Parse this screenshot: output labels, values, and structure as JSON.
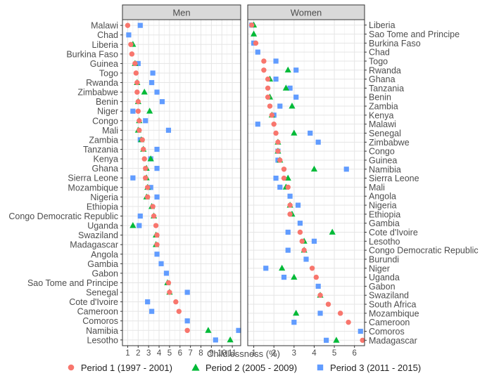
{
  "chart_data": {
    "type": "scatter",
    "xlabel": "Childlessness (%)",
    "colors": {
      "p1": "#F8766D",
      "p2": "#00BA38",
      "p3": "#619CFF"
    },
    "series": [
      {
        "key": "p1",
        "name": "Period 1 (1997 - 2001)",
        "marker": "circle"
      },
      {
        "key": "p2",
        "name": "Period 2 (2005 - 2009)",
        "marker": "triangle"
      },
      {
        "key": "p3",
        "name": "Period 3 (2011 - 2015)",
        "marker": "square"
      }
    ],
    "panels": [
      {
        "title": "Men",
        "axis_side": "left",
        "xlim": [
          0.5,
          11.8
        ],
        "ticks": [
          1,
          2,
          3,
          4,
          5,
          6,
          7,
          8,
          9,
          10,
          11
        ],
        "countries": [
          {
            "name": "Malawi",
            "p1": 1.0,
            "p2": null,
            "p3": 2.2
          },
          {
            "name": "Chad",
            "p1": null,
            "p2": null,
            "p3": 1.1
          },
          {
            "name": "Liberia",
            "p1": 1.3,
            "p2": 1.5,
            "p3": null
          },
          {
            "name": "Burkina Faso",
            "p1": 1.4,
            "p2": null,
            "p3": null
          },
          {
            "name": "Guinea",
            "p1": 1.7,
            "p2": 1.7,
            "p3": 2.0
          },
          {
            "name": "Togo",
            "p1": 1.8,
            "p2": null,
            "p3": 3.4
          },
          {
            "name": "Rwanda",
            "p1": 1.9,
            "p2": 1.9,
            "p3": 3.3
          },
          {
            "name": "Zimbabwe",
            "p1": 1.9,
            "p2": 2.6,
            "p3": 3.8
          },
          {
            "name": "Benin",
            "p1": 2.0,
            "p2": 2.0,
            "p3": 4.3
          },
          {
            "name": "Niger",
            "p1": 2.0,
            "p2": 3.1,
            "p3": 1.5
          },
          {
            "name": "Congo",
            "p1": 2.1,
            "p2": 2.1,
            "p3": 2.7
          },
          {
            "name": "Mali",
            "p1": 2.1,
            "p2": 2.0,
            "p3": 4.9
          },
          {
            "name": "Zambia",
            "p1": 2.4,
            "p2": 2.3,
            "p3": 2.2
          },
          {
            "name": "Tanzania",
            "p1": 2.5,
            "p2": 2.5,
            "p3": 3.8
          },
          {
            "name": "Kenya",
            "p1": 2.6,
            "p2": 3.2,
            "p3": 3.2
          },
          {
            "name": "Ghana",
            "p1": 2.7,
            "p2": 2.8,
            "p3": 3.8
          },
          {
            "name": "Sierra Leone",
            "p1": 2.7,
            "p2": 2.8,
            "p3": 1.5
          },
          {
            "name": "Mozambique",
            "p1": 2.9,
            "p2": 2.9,
            "p3": 3.2
          },
          {
            "name": "Nigeria",
            "p1": 2.9,
            "p2": 2.8,
            "p3": 3.8
          },
          {
            "name": "Ethiopia",
            "p1": 3.4,
            "p2": 3.3,
            "p3": null
          },
          {
            "name": "Congo Democratic Republic",
            "p1": 3.5,
            "p2": 3.5,
            "p3": 2.2
          },
          {
            "name": "Uganda",
            "p1": 3.7,
            "p2": 1.5,
            "p3": 2.1
          },
          {
            "name": "Swaziland",
            "p1": 3.8,
            "p2": 3.7,
            "p3": null
          },
          {
            "name": "Madagascar",
            "p1": 3.8,
            "p2": 3.7,
            "p3": null
          },
          {
            "name": "Angola",
            "p1": null,
            "p2": null,
            "p3": 3.8
          },
          {
            "name": "Gambia",
            "p1": null,
            "p2": null,
            "p3": 4.2
          },
          {
            "name": "Gabon",
            "p1": null,
            "p2": null,
            "p3": 4.7
          },
          {
            "name": "Sao Tome and Principe",
            "p1": 4.9,
            "p2": 4.8,
            "p3": null
          },
          {
            "name": "Senegal",
            "p1": 5.0,
            "p2": 5.0,
            "p3": 6.7
          },
          {
            "name": "Cote d'Ivoire",
            "p1": 5.6,
            "p2": null,
            "p3": 2.9
          },
          {
            "name": "Cameroon",
            "p1": 5.9,
            "p2": null,
            "p3": 3.3
          },
          {
            "name": "Comoros",
            "p1": null,
            "p2": null,
            "p3": 6.7
          },
          {
            "name": "Namibia",
            "p1": 6.7,
            "p2": 8.7,
            "p3": 11.6
          },
          {
            "name": "Lesotho",
            "p1": null,
            "p2": 10.8,
            "p3": 9.4
          }
        ]
      },
      {
        "title": "Women",
        "axis_side": "right",
        "xlim": [
          0.7,
          6.5
        ],
        "ticks": [
          1,
          2,
          3,
          4,
          5,
          6
        ],
        "countries": [
          {
            "name": "Liberia",
            "p1": 0.9,
            "p2": 1.0,
            "p3": 0.9
          },
          {
            "name": "Sao Tome and Principe",
            "p1": null,
            "p2": 1.0,
            "p3": null
          },
          {
            "name": "Burkina Faso",
            "p1": 1.1,
            "p2": null,
            "p3": 1.0
          },
          {
            "name": "Chad",
            "p1": null,
            "p2": null,
            "p3": 1.2
          },
          {
            "name": "Togo",
            "p1": 1.5,
            "p2": null,
            "p3": 2.1
          },
          {
            "name": "Rwanda",
            "p1": 1.5,
            "p2": 2.7,
            "p3": 3.1
          },
          {
            "name": "Ghana",
            "p1": 1.7,
            "p2": 1.8,
            "p3": 2.1
          },
          {
            "name": "Tanzania",
            "p1": 1.7,
            "p2": 2.6,
            "p3": 2.8
          },
          {
            "name": "Benin",
            "p1": 1.7,
            "p2": 1.8,
            "p3": 3.1
          },
          {
            "name": "Zambia",
            "p1": 1.8,
            "p2": 2.9,
            "p3": 2.3
          },
          {
            "name": "Kenya",
            "p1": 1.9,
            "p2": 1.9,
            "p3": 2.0
          },
          {
            "name": "Malawi",
            "p1": 2.0,
            "p2": null,
            "p3": 1.2
          },
          {
            "name": "Senegal",
            "p1": 2.1,
            "p2": 3.0,
            "p3": 3.8
          },
          {
            "name": "Zimbabwe",
            "p1": 2.2,
            "p2": 2.2,
            "p3": 4.2
          },
          {
            "name": "Congo",
            "p1": 2.2,
            "p2": 2.2,
            "p3": 2.2
          },
          {
            "name": "Guinea",
            "p1": 2.3,
            "p2": 2.3,
            "p3": 2.2
          },
          {
            "name": "Namibia",
            "p1": 2.5,
            "p2": 4.0,
            "p3": 5.6
          },
          {
            "name": "Sierra Leone",
            "p1": 2.5,
            "p2": 2.7,
            "p3": 2.1
          },
          {
            "name": "Mali",
            "p1": 2.7,
            "p2": 2.6,
            "p3": 2.3
          },
          {
            "name": "Angola",
            "p1": null,
            "p2": null,
            "p3": 2.8
          },
          {
            "name": "Nigeria",
            "p1": 2.8,
            "p2": 2.8,
            "p3": 3.2
          },
          {
            "name": "Ethiopia",
            "p1": 2.8,
            "p2": 2.9,
            "p3": null
          },
          {
            "name": "Gambia",
            "p1": null,
            "p2": null,
            "p3": 3.3
          },
          {
            "name": "Cote d'Ivoire",
            "p1": 3.3,
            "p2": 4.9,
            "p3": 2.7
          },
          {
            "name": "Lesotho",
            "p1": 3.4,
            "p2": 3.5,
            "p3": 4.0
          },
          {
            "name": "Congo Democratic Republic",
            "p1": 3.5,
            "p2": 3.5,
            "p3": 2.7
          },
          {
            "name": "Burundi",
            "p1": null,
            "p2": null,
            "p3": 3.6
          },
          {
            "name": "Niger",
            "p1": 3.9,
            "p2": 2.4,
            "p3": 1.6
          },
          {
            "name": "Uganda",
            "p1": 4.1,
            "p2": 3.0,
            "p3": 2.5
          },
          {
            "name": "Gabon",
            "p1": null,
            "p2": null,
            "p3": 4.2
          },
          {
            "name": "Swaziland",
            "p1": 4.3,
            "p2": 4.3,
            "p3": null
          },
          {
            "name": "South Africa",
            "p1": 4.7,
            "p2": null,
            "p3": null
          },
          {
            "name": "Mozambique",
            "p1": 5.3,
            "p2": 3.1,
            "p3": 4.3
          },
          {
            "name": "Cameroon",
            "p1": 5.7,
            "p2": null,
            "p3": 3.0
          },
          {
            "name": "Comoros",
            "p1": null,
            "p2": null,
            "p3": 6.3
          },
          {
            "name": "Madagascar",
            "p1": 6.4,
            "p2": 5.1,
            "p3": 4.6
          }
        ]
      }
    ]
  }
}
